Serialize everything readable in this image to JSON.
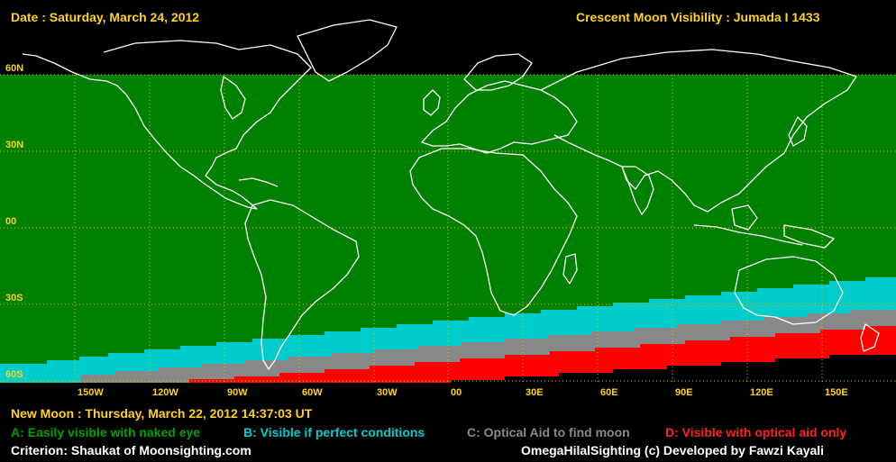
{
  "header": {
    "date": "Date : Saturday, March 24, 2012",
    "title": "Crescent Moon Visibility : Jumada I  1433"
  },
  "latitudes": [
    "60N",
    "30N",
    "00",
    "30S",
    "60S"
  ],
  "longitudes": [
    "150W",
    "120W",
    "90W",
    "60W",
    "30W",
    "00",
    "30E",
    "60E",
    "90E",
    "120E",
    "150E"
  ],
  "footer": {
    "new_moon": "New Moon : Thursday, March 22, 2012  14:37:03  UT",
    "legend": {
      "a": "A: Easily visible with naked eye",
      "b": "B: Visible if perfect conditions",
      "c": "C: Optical Aid to find moon",
      "d": "D: Visible with optical aid only"
    },
    "criterion": "Criterion: Shaukat of Moonsighting.com",
    "credit": "OmegaHilalSighting  (c)  Developed by Fawzi Kayali"
  },
  "colors": {
    "zone_a": "#008000",
    "zone_b": "#00cccc",
    "zone_c": "#888888",
    "zone_d": "#ff0000",
    "label": "#ffd21e",
    "coast": "#ffffff",
    "grid": "#c8c800"
  }
}
